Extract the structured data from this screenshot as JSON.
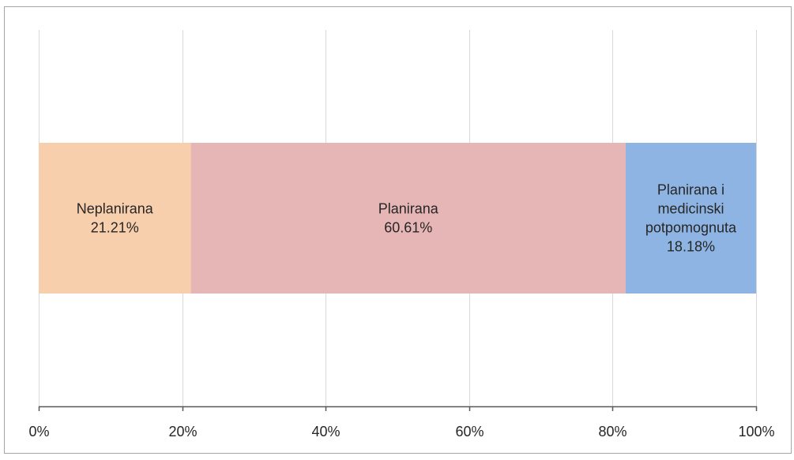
{
  "chart_data": {
    "type": "bar",
    "orientation": "horizontal",
    "stacked": true,
    "percent_stacked": true,
    "categories": [
      ""
    ],
    "series": [
      {
        "name": "Neplanirana",
        "label_lines": [
          "Neplanirana"
        ],
        "values": [
          21.21
        ],
        "label": "21.21%",
        "color": "#f8cfad"
      },
      {
        "name": "Planirana",
        "label_lines": [
          "Planirana"
        ],
        "values": [
          60.61
        ],
        "label": "60.61%",
        "color": "#e6b5b5"
      },
      {
        "name": "Planirana i medicinski potpomognuta",
        "label_lines": [
          "Planirana i",
          "medicinski",
          "potpomognuta"
        ],
        "values": [
          18.18
        ],
        "label": "18.18%",
        "color": "#8eb4e3"
      }
    ],
    "xlim": [
      0,
      100
    ],
    "x_ticks": [
      0,
      20,
      40,
      60,
      80,
      100
    ],
    "x_tick_labels": [
      "0%",
      "20%",
      "40%",
      "60%",
      "80%",
      "100%"
    ],
    "grid": true,
    "legend": "none"
  },
  "colors": {
    "gridline": "#d9d9d9",
    "axis": "#595959",
    "frame": "#a6a6a6",
    "text": "#262626"
  }
}
